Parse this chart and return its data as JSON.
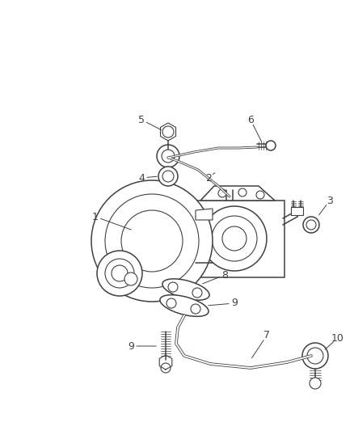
{
  "background_color": "#ffffff",
  "line_color": "#404040",
  "label_color": "#404040",
  "fig_width": 4.38,
  "fig_height": 5.33,
  "dpi": 100
}
